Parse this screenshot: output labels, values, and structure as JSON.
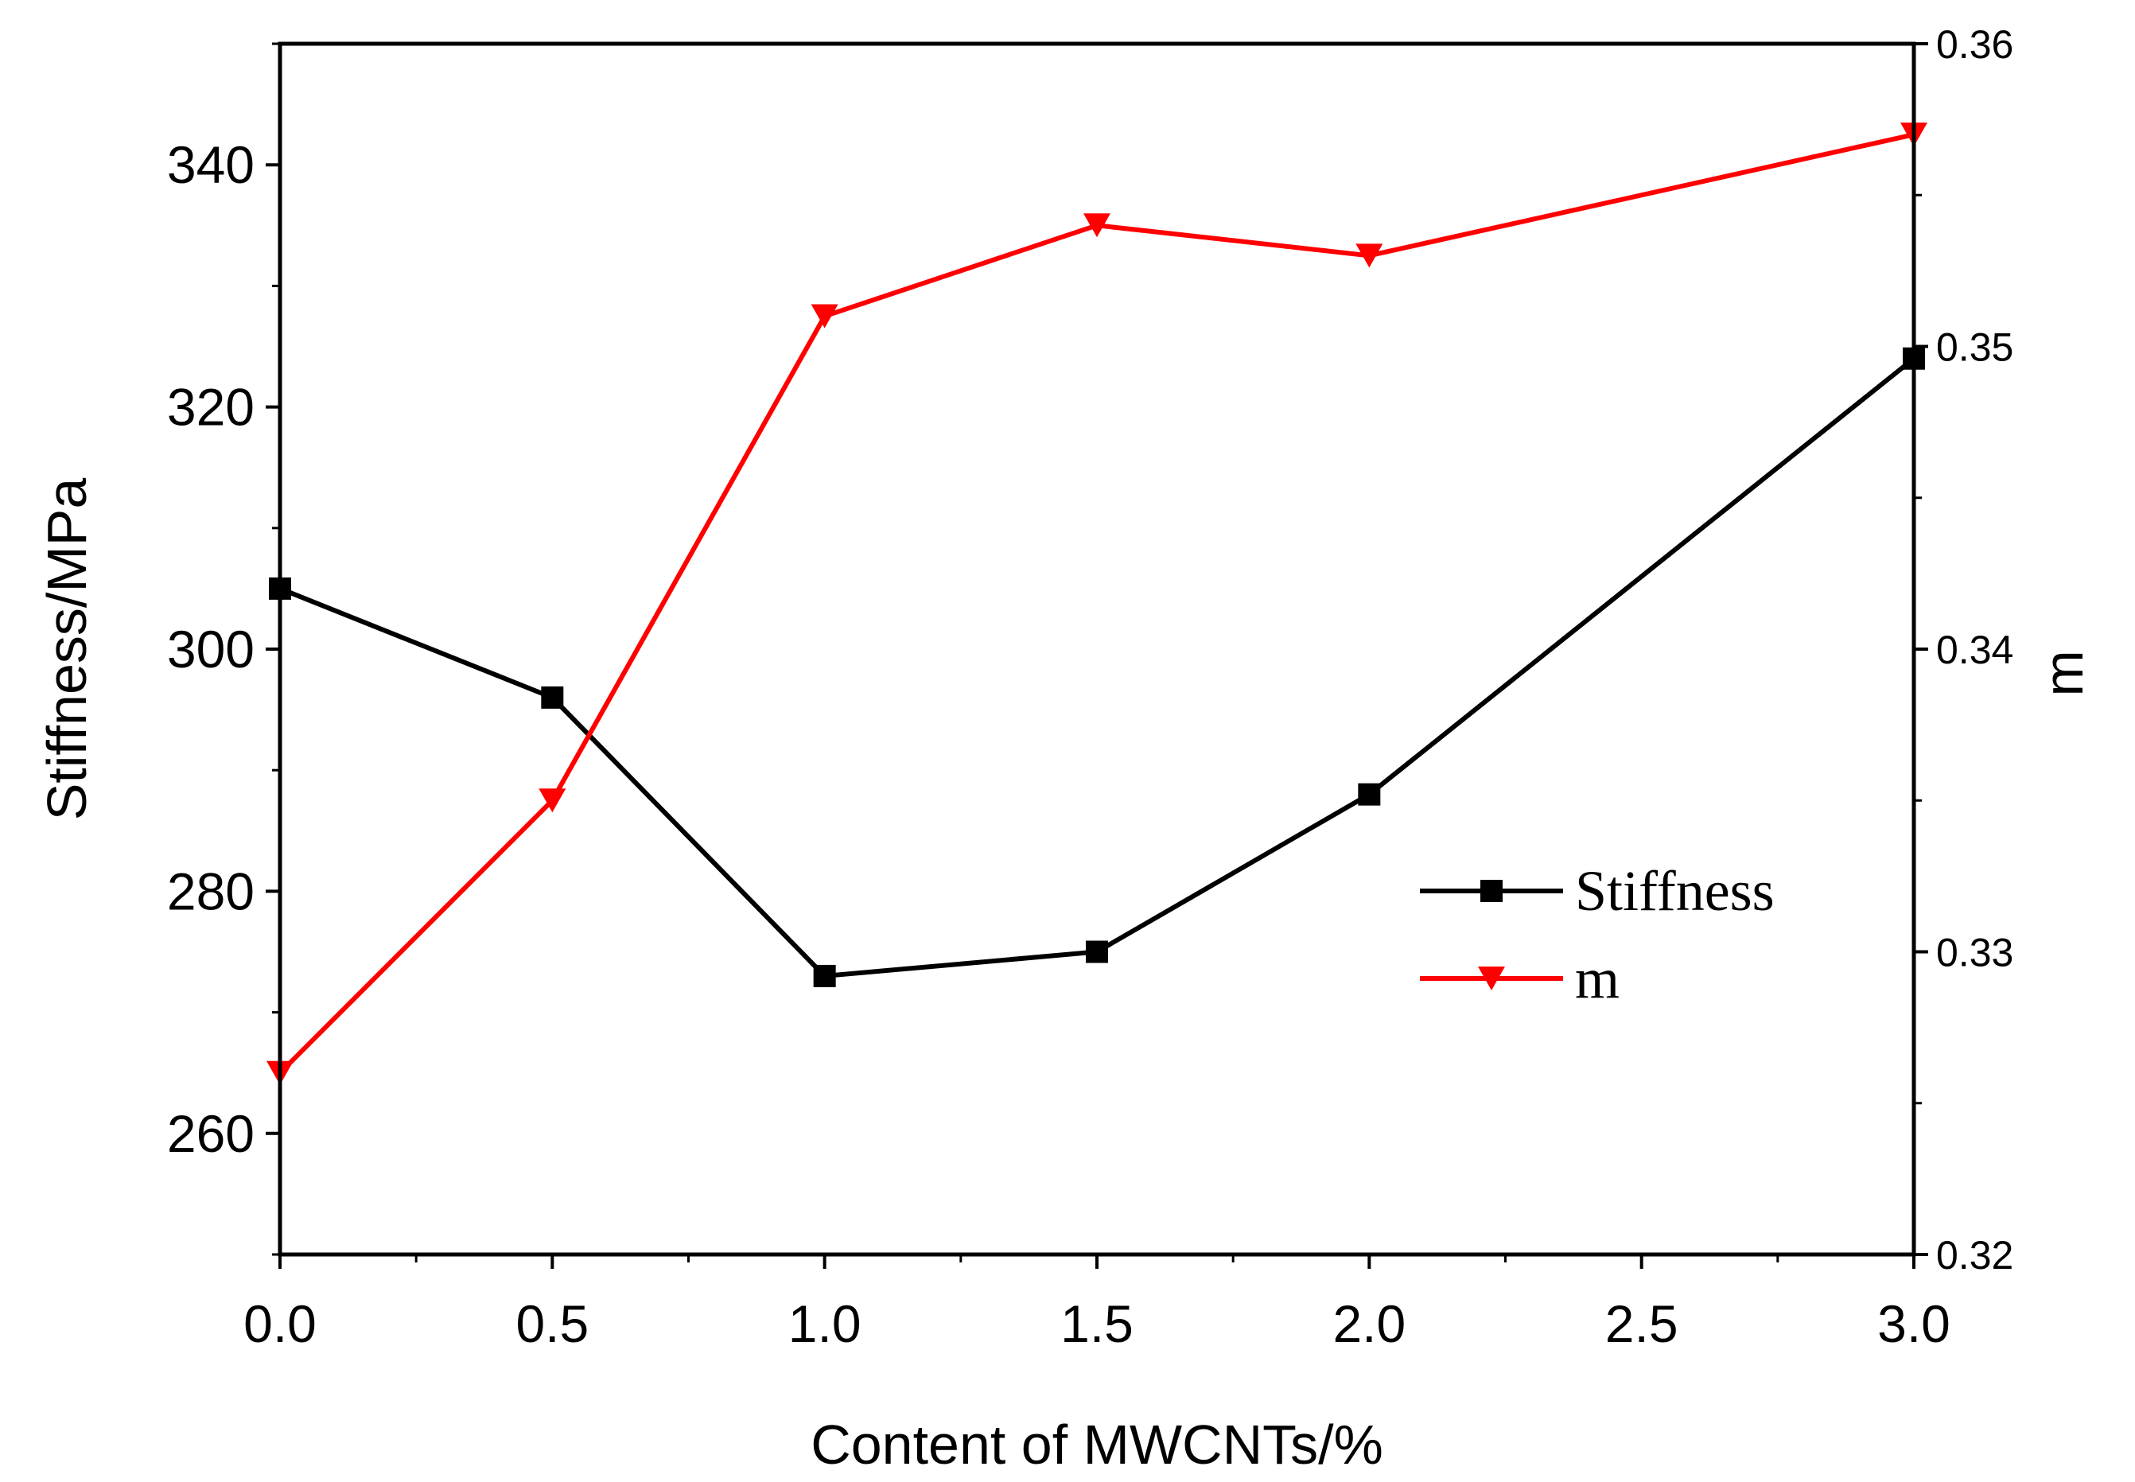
{
  "chart_data": {
    "type": "line",
    "xlabel": "Content of MWCNTs/%",
    "ylabel_left": "Stiffness/MPa",
    "ylabel_right": "m",
    "xlim": [
      0,
      3
    ],
    "ylim_left": [
      250,
      350
    ],
    "ylim_right": [
      0.32,
      0.36
    ],
    "x_ticks": [
      "0.0",
      "0.5",
      "1.0",
      "1.5",
      "2.0",
      "2.5",
      "3.0"
    ],
    "y_left_ticks": [
      "260",
      "280",
      "300",
      "320",
      "340"
    ],
    "y_right_ticks": [
      "0.32",
      "0.33",
      "0.34",
      "0.35",
      "0.36"
    ],
    "legend_position": "center-right",
    "grid": false,
    "series": [
      {
        "name": "Stiffness",
        "axis": "left",
        "color": "#000000",
        "marker": "square",
        "x": [
          0,
          0.5,
          1.0,
          1.5,
          2.0,
          3.0
        ],
        "values": [
          305,
          296,
          273,
          275,
          288,
          324
        ]
      },
      {
        "name": "m",
        "axis": "right",
        "color": "#ff0000",
        "marker": "triangle-down",
        "x": [
          0,
          0.5,
          1.0,
          1.5,
          2.0,
          3.0
        ],
        "values": [
          0.326,
          0.335,
          0.351,
          0.354,
          0.353,
          0.357
        ]
      }
    ]
  }
}
